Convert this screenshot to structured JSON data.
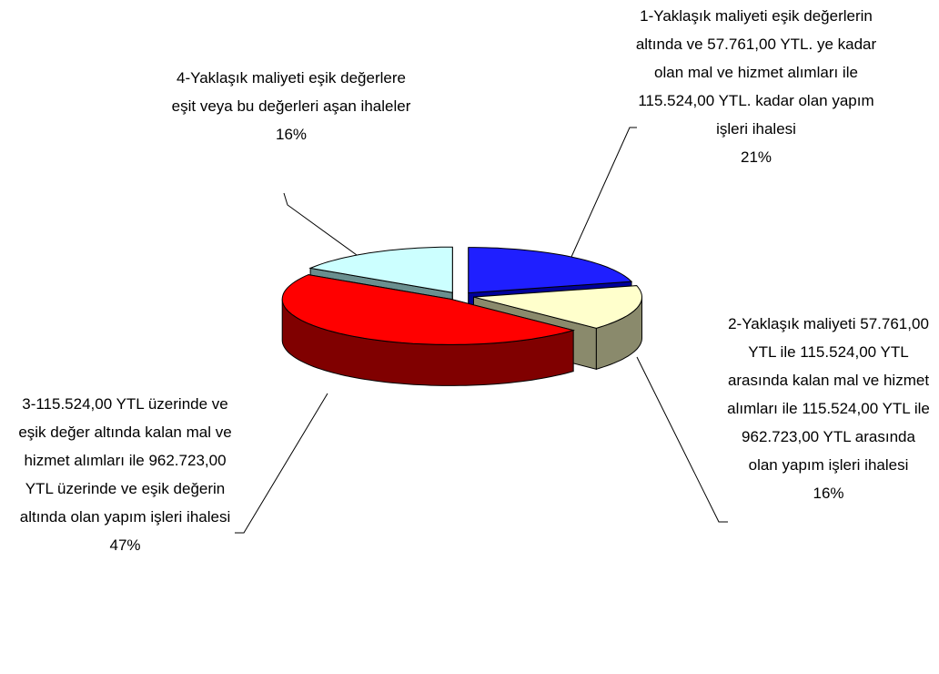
{
  "chart_data": {
    "type": "pie3d",
    "categories": [
      "1-Yaklaşık maliyeti eşik değerlerin altında ve 57.761,00 YTL. ye kadar olan mal ve hizmet alımları ile 115.524,00 YTL. kadar olan yapım işleri ihalesi",
      "2-Yaklaşık maliyeti 57.761,00 YTL ile 115.524,00 YTL arasında kalan mal ve hizmet alımları ile 115.524,00 YTL ile 962.723,00 YTL arasında olan yapım işleri ihalesi",
      "3-115.524,00 YTL üzerinde ve eşik değer altında kalan mal ve hizmet alımları ile 962.723,00 YTL üzerinde ve eşik değerin altında olan yapım işleri ihalesi",
      "4-Yaklaşık maliyeti eşik değerlere eşit veya bu değerleri aşan ihaleler"
    ],
    "values": [
      21,
      16,
      47,
      16
    ],
    "value_labels": [
      "21%",
      "16%",
      "47%",
      "16%"
    ],
    "colors": [
      "#1f1fff",
      "#ffffcc",
      "#ff0000",
      "#ccffff"
    ],
    "side_colors": [
      "#00009a",
      "#8a8a6c",
      "#800000",
      "#6a8f8f"
    ]
  }
}
